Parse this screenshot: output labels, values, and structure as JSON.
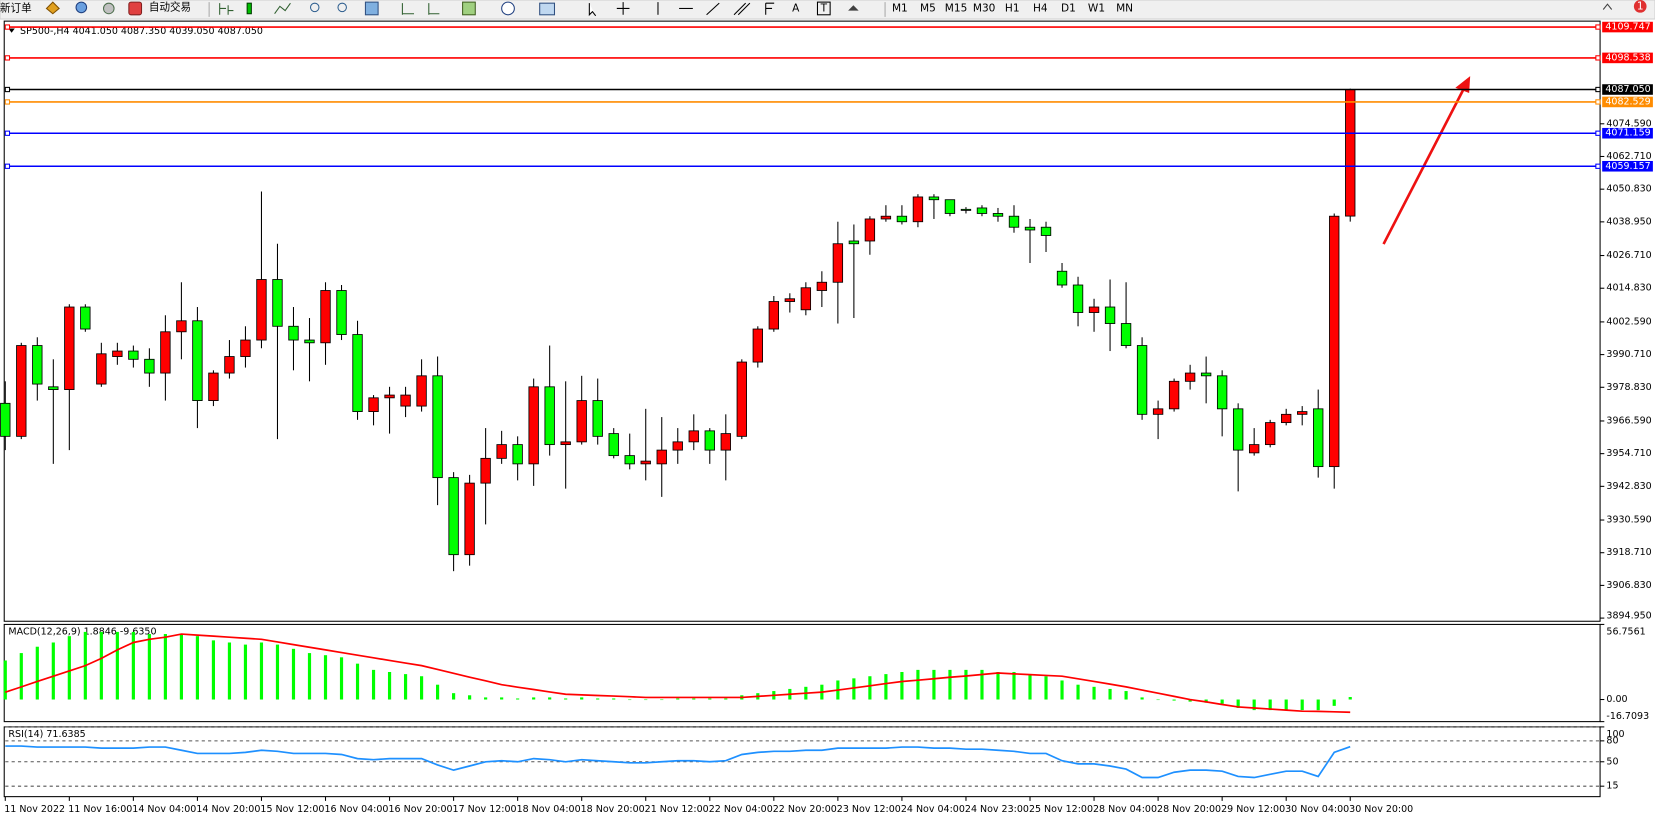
{
  "toolbar": {
    "new_order": "新订单",
    "auto_trading": "自动交易",
    "text_tool": "A",
    "label_tool": "T",
    "timeframes": [
      "M1",
      "M5",
      "M15",
      "M30",
      "H1",
      "H4",
      "D1",
      "W1",
      "MN"
    ],
    "notification": "1"
  },
  "chart_data": [
    {
      "type": "candlestick",
      "title": "SP500-,H4  4041.050 4087.350 4039.050 4087.050",
      "up_color": "#ff0000",
      "down_color": "#00ff00",
      "categories": [
        "11 Nov 2022",
        null,
        null,
        null,
        "11 Nov 16:00",
        null,
        null,
        null,
        "14 Nov 04:00",
        null,
        null,
        null,
        "14 Nov 20:00",
        null,
        null,
        null,
        "15 Nov 12:00",
        null,
        null,
        null,
        "16 Nov 04:00",
        null,
        null,
        null,
        "16 Nov 20:00",
        null,
        null,
        null,
        "17 Nov 12:00",
        null,
        null,
        null,
        "18 Nov 04:00",
        null,
        null,
        null,
        "18 Nov 20:00",
        null,
        null,
        null,
        "21 Nov 12:00",
        null,
        null,
        null,
        "22 Nov 04:00",
        null,
        null,
        null,
        "22 Nov 20:00",
        null,
        null,
        null,
        "23 Nov 12:00",
        null,
        null,
        null,
        "24 Nov 04:00",
        null,
        null,
        null,
        "24 Nov 23:00",
        null,
        null,
        null,
        "25 Nov 12:00",
        null,
        null,
        null,
        "28 Nov 04:00",
        null,
        null,
        null,
        "28 Nov 20:00",
        null,
        null,
        null,
        "29 Nov 12:00",
        null,
        null,
        null,
        "30 Nov 04:00",
        null,
        null,
        null,
        "30 Nov 20:00"
      ],
      "open": [
        3973,
        3961,
        3994,
        3979,
        3978,
        4008,
        3980,
        3990,
        3992,
        3989,
        3984,
        3999,
        4003,
        3974,
        3984,
        3990,
        3996,
        4018,
        4001,
        3996,
        3995,
        4014,
        3998,
        3970,
        3975,
        3972,
        3972,
        3983,
        3946,
        3918,
        3944,
        3953,
        3958,
        3951,
        3979,
        3958,
        3959,
        3974,
        3962,
        3954,
        3951,
        3951,
        3956,
        3959,
        3963,
        3956,
        3961,
        3988,
        4000,
        4010,
        4007,
        4014,
        4017,
        4032,
        4032,
        4040,
        4041,
        4039,
        4048,
        4047,
        4043.5,
        4044,
        4042,
        4041,
        4037,
        4037,
        4021,
        4016,
        4006,
        4008,
        4002,
        3994,
        3969,
        3971,
        3981,
        3984,
        3983,
        3971,
        3955,
        3958,
        3966,
        3969,
        3971,
        3950,
        4041.05
      ],
      "high": [
        3981,
        3995,
        3997,
        3989,
        4009,
        4009,
        3995,
        3995,
        3994,
        3993,
        4005,
        4017,
        4008,
        3985,
        3996,
        4001,
        4050,
        4031,
        4008,
        4004,
        4017,
        4016,
        4003,
        3976,
        3979,
        3979,
        3989,
        3990,
        3948,
        3947,
        3964,
        3963,
        3961,
        3982,
        3994,
        3981,
        3983,
        3982,
        3964,
        3962,
        3971,
        3968,
        3964,
        3969,
        3964,
        3969,
        3989,
        4001,
        4012,
        4013,
        4017,
        4021,
        4039,
        4038,
        4041,
        4045,
        4045,
        4049,
        4049,
        4047,
        4044.3,
        4045,
        4044,
        4045,
        4040,
        4039,
        4024,
        4019,
        4011,
        4018,
        4017,
        3997,
        3974,
        3982,
        3987,
        3990,
        3985,
        3973,
        3964,
        3967,
        3971,
        3972,
        3978,
        4042,
        4087.35
      ],
      "low": [
        3956,
        3960,
        3974,
        3951,
        3956,
        3999,
        3979,
        3987,
        3986,
        3979,
        3974,
        3989,
        3964,
        3972,
        3982,
        3986,
        3993,
        3960,
        3985,
        3981,
        3987,
        3996,
        3967,
        3965,
        3962,
        3968,
        3970,
        3936,
        3912,
        3914,
        3929,
        3951,
        3945,
        3943,
        3954,
        3942,
        3958,
        3958,
        3953,
        3949,
        3945,
        3939,
        3951,
        3956,
        3951,
        3945,
        3960,
        3986,
        3999,
        4006,
        4005,
        4008,
        4002,
        4004,
        4027,
        4039,
        4038,
        4037,
        4040,
        4041,
        4042,
        4041,
        4039,
        4035,
        4024,
        4028,
        4015,
        4001,
        3999,
        3992,
        3993,
        3967,
        3960,
        3970,
        3978,
        3973,
        3961,
        3941,
        3954,
        3957,
        3965,
        3965,
        3946,
        3942,
        4039.05
      ],
      "close": [
        3961,
        3994,
        3980,
        3978,
        4008,
        4000,
        3991,
        3992,
        3989,
        3984,
        3999,
        4003,
        3974,
        3984,
        3990,
        3996,
        4018,
        4001,
        3996,
        3995,
        4014,
        3998,
        3970,
        3975,
        3976,
        3976,
        3983,
        3946,
        3918,
        3944,
        3953,
        3958,
        3951,
        3979,
        3958,
        3959,
        3974,
        3961,
        3954,
        3951,
        3952,
        3956,
        3959,
        3963,
        3956,
        3962,
        3988,
        4000,
        4010,
        4011,
        4015,
        4017,
        4031,
        4031,
        4040,
        4041,
        4039,
        4048,
        4047,
        4042,
        4043.2,
        4042,
        4041,
        4037,
        4036,
        4034,
        4016,
        4006,
        4008,
        4002,
        3994,
        3969,
        3971,
        3981,
        3984,
        3983,
        3971,
        3956,
        3958,
        3966,
        3969,
        3970,
        3950,
        4041,
        4087.05
      ],
      "ylim": [
        3893.8,
        4111.9
      ],
      "yticks": [
        {
          "value": 4074.59,
          "label": "4074.590"
        },
        {
          "value": 4062.71,
          "label": "4062.710"
        },
        {
          "value": 4050.83,
          "label": "4050.830"
        },
        {
          "value": 4038.95,
          "label": "4038.950"
        },
        {
          "value": 4026.71,
          "label": "4026.710"
        },
        {
          "value": 4014.83,
          "label": "4014.830"
        },
        {
          "value": 4002.59,
          "label": "4002.590"
        },
        {
          "value": 3990.71,
          "label": "3990.710"
        },
        {
          "value": 3978.83,
          "label": "3978.830"
        },
        {
          "value": 3966.59,
          "label": "3966.590"
        },
        {
          "value": 3954.71,
          "label": "3954.710"
        },
        {
          "value": 3942.83,
          "label": "3942.830"
        },
        {
          "value": 3930.59,
          "label": "3930.590"
        },
        {
          "value": 3918.71,
          "label": "3918.710"
        },
        {
          "value": 3906.83,
          "label": "3906.830"
        },
        {
          "value": 3894.95,
          "label": "3894.950"
        }
      ],
      "levels": [
        {
          "value": 4109.747,
          "label": "4109.747",
          "color": "#ff0000"
        },
        {
          "value": 4098.538,
          "label": "4098.538",
          "color": "#ff0000"
        },
        {
          "value": 4087.05,
          "label": "4087.050",
          "color": "#000000"
        },
        {
          "value": 4082.529,
          "label": "4082.529",
          "color": "#ff8c00"
        },
        {
          "value": 4071.159,
          "label": "4071.159",
          "color": "#0000ff"
        },
        {
          "value": 4059.157,
          "label": "4059.157",
          "color": "#0000ff"
        }
      ]
    },
    {
      "type": "macd",
      "title": "MACD(12,26,9) 1.8846 -9.6350",
      "series": [
        {
          "style": "histogram",
          "color": "#00ff00",
          "values": [
            29.5,
            35.1,
            39.9,
            43.1,
            47.9,
            51.1,
            51.1,
            51.1,
            51.1,
            49.5,
            49.5,
            49.5,
            47.9,
            44.7,
            43.1,
            41.5,
            43.1,
            41.5,
            38.3,
            35.1,
            33.5,
            31.9,
            27.1,
            22.4,
            20.8,
            19.2,
            17.6,
            11.2,
            4.8,
            3.2,
            1.6,
            1.6,
            0.8,
            1.6,
            1.6,
            0.8,
            1.6,
            0.8,
            0.8,
            0,
            0,
            0,
            0.8,
            0.8,
            0.8,
            0.8,
            3.2,
            4.8,
            6.4,
            8.0,
            9.6,
            11.2,
            14.4,
            16.0,
            17.6,
            19.2,
            20.8,
            22.4,
            22.4,
            22.4,
            22.4,
            22.4,
            20.8,
            20.8,
            19.2,
            17.6,
            14.4,
            11.2,
            9.6,
            8.0,
            6.4,
            1.6,
            0,
            -0.8,
            -1.6,
            -2.4,
            -3.2,
            -6.4,
            -8.0,
            -8.0,
            -8.0,
            -8.0,
            -8.0,
            -4.8,
            1.8846
          ]
        },
        {
          "style": "line",
          "color": "#ff0000",
          "values": [
            5.6,
            9.6,
            13.6,
            17.6,
            21.6,
            25.6,
            31.1,
            37.5,
            43.1,
            45.5,
            47.1,
            49.5,
            48.7,
            47.9,
            47.1,
            46.3,
            45.5,
            43.5,
            41.5,
            39.5,
            37.5,
            35.5,
            33.5,
            31.5,
            29.5,
            27.5,
            25.6,
            22.7,
            19.8,
            16.9,
            14.1,
            11.2,
            9.3,
            7.6,
            5.7,
            4.0,
            3.5,
            3.0,
            2.6,
            2.1,
            1.6,
            1.6,
            1.6,
            1.6,
            1.6,
            1.6,
            1.6,
            2.4,
            3.2,
            4.0,
            4.8,
            5.6,
            7.2,
            8.8,
            10.4,
            12.0,
            13.6,
            14.6,
            15.7,
            16.8,
            17.8,
            18.9,
            20.0,
            19.4,
            18.8,
            18.2,
            17.6,
            15.6,
            13.6,
            11.6,
            9.6,
            7.2,
            4.8,
            2.4,
            0,
            -1.8,
            -3.8,
            -5.6,
            -6.4,
            -7.2,
            -8.0,
            -8.8,
            -9.0,
            -9.3,
            -9.635
          ]
        }
      ],
      "ylim": [
        -16.7093,
        56.7561
      ],
      "yticks": [
        56.7561,
        {
          "value": 0,
          "label": "0.00"
        },
        -16.7093
      ]
    },
    {
      "type": "line",
      "title": "RSI(14) 71.6385",
      "level_style": "dashed",
      "series": [
        {
          "color": "#1e90ff",
          "values": [
            72.5,
            72.5,
            71.0,
            71.0,
            71.0,
            71.0,
            69.5,
            69.5,
            69.5,
            71.0,
            71.0,
            66.5,
            62.0,
            62.0,
            62.0,
            63.5,
            66.5,
            65.0,
            62.0,
            62.0,
            62.0,
            60.5,
            54.5,
            53.0,
            54.5,
            54.5,
            54.5,
            45.5,
            38.0,
            44.0,
            50.0,
            51.5,
            50.0,
            54.5,
            53.0,
            50.0,
            53.0,
            51.5,
            50.0,
            48.5,
            48.5,
            50.0,
            51.5,
            51.5,
            50.0,
            51.5,
            60.5,
            63.5,
            65.0,
            65.0,
            66.5,
            66.5,
            69.5,
            69.5,
            69.5,
            69.5,
            71.0,
            71.0,
            69.5,
            69.5,
            68.0,
            68.0,
            66.5,
            65.0,
            62.0,
            62.0,
            51.5,
            47.0,
            47.0,
            44.0,
            39.5,
            27.5,
            27.5,
            35.0,
            38.0,
            38.0,
            36.5,
            29.0,
            27.5,
            32.0,
            36.5,
            36.5,
            29.0,
            63.5,
            71.6385
          ]
        }
      ],
      "ylim": [
        0,
        100
      ],
      "yticks": [
        100,
        80,
        50,
        15
      ]
    }
  ]
}
